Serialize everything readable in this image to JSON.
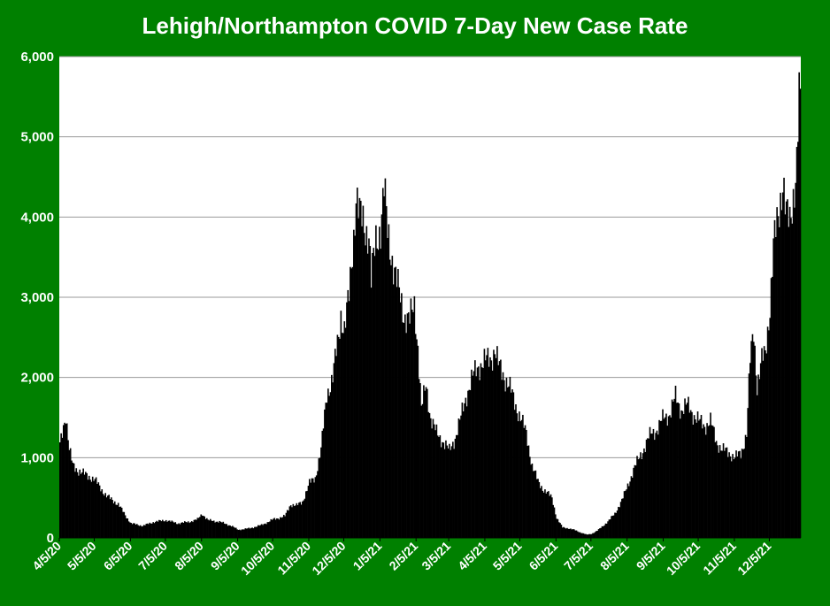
{
  "chart_data": {
    "type": "bar",
    "title": "Lehigh/Northampton COVID 7-Day New Case Rate",
    "xlabel": "",
    "ylabel": "",
    "ylim": [
      0,
      6000
    ],
    "y_ticks": [
      0,
      1000,
      2000,
      3000,
      4000,
      5000,
      6000
    ],
    "y_tick_labels": [
      "0",
      "1,000",
      "2,000",
      "3,000",
      "4,000",
      "5,000",
      "6,000"
    ],
    "x_tick_labels": [
      "4/5/20",
      "5/5/20",
      "6/5/20",
      "7/5/20",
      "8/5/20",
      "9/5/20",
      "10/5/20",
      "11/5/20",
      "12/5/20",
      "1/5/21",
      "2/5/21",
      "3/5/21",
      "4/5/21",
      "5/5/21",
      "6/5/21",
      "7/5/21",
      "8/5/21",
      "9/5/21",
      "10/5/21",
      "11/5/21",
      "12/5/21"
    ],
    "x_range": [
      "2020-04-05",
      "2021-12-31"
    ],
    "grid": true,
    "bar_color": "#000000",
    "plot_background": "#ffffff",
    "frame_background": "#008000",
    "series": [
      {
        "points": [
          [
            "2020-04-05",
            1150
          ],
          [
            "2020-04-08",
            1400
          ],
          [
            "2020-04-10",
            1550
          ],
          [
            "2020-04-13",
            1100
          ],
          [
            "2020-04-16",
            900
          ],
          [
            "2020-04-20",
            850
          ],
          [
            "2020-04-25",
            800
          ],
          [
            "2020-05-01",
            760
          ],
          [
            "2020-05-05",
            720
          ],
          [
            "2020-05-10",
            620
          ],
          [
            "2020-05-15",
            520
          ],
          [
            "2020-05-20",
            470
          ],
          [
            "2020-05-25",
            420
          ],
          [
            "2020-06-01",
            260
          ],
          [
            "2020-06-05",
            180
          ],
          [
            "2020-06-15",
            150
          ],
          [
            "2020-06-25",
            200
          ],
          [
            "2020-07-05",
            220
          ],
          [
            "2020-07-15",
            180
          ],
          [
            "2020-07-25",
            200
          ],
          [
            "2020-08-01",
            230
          ],
          [
            "2020-08-05",
            300
          ],
          [
            "2020-08-10",
            220
          ],
          [
            "2020-08-20",
            200
          ],
          [
            "2020-08-30",
            150
          ],
          [
            "2020-09-05",
            100
          ],
          [
            "2020-09-15",
            120
          ],
          [
            "2020-09-25",
            160
          ],
          [
            "2020-10-05",
            230
          ],
          [
            "2020-10-15",
            270
          ],
          [
            "2020-10-20",
            420
          ],
          [
            "2020-10-25",
            400
          ],
          [
            "2020-10-30",
            450
          ],
          [
            "2020-11-05",
            680
          ],
          [
            "2020-11-10",
            750
          ],
          [
            "2020-11-15",
            1100
          ],
          [
            "2020-11-20",
            1800
          ],
          [
            "2020-11-25",
            2000
          ],
          [
            "2020-11-30",
            2500
          ],
          [
            "2020-12-02",
            2800
          ],
          [
            "2020-12-05",
            2600
          ],
          [
            "2020-12-09",
            3000
          ],
          [
            "2020-12-13",
            3800
          ],
          [
            "2020-12-15",
            4300
          ],
          [
            "2020-12-18",
            4000
          ],
          [
            "2020-12-22",
            3900
          ],
          [
            "2020-12-26",
            3800
          ],
          [
            "2020-12-28",
            3200
          ],
          [
            "2021-01-01",
            3700
          ],
          [
            "2021-01-05",
            3900
          ],
          [
            "2021-01-08",
            4350
          ],
          [
            "2021-01-11",
            3800
          ],
          [
            "2021-01-15",
            3500
          ],
          [
            "2021-01-20",
            3100
          ],
          [
            "2021-01-25",
            2800
          ],
          [
            "2021-01-30",
            2700
          ],
          [
            "2021-02-03",
            2900
          ],
          [
            "2021-02-06",
            2400
          ],
          [
            "2021-02-09",
            1600
          ],
          [
            "2021-02-13",
            1900
          ],
          [
            "2021-02-17",
            1500
          ],
          [
            "2021-02-22",
            1300
          ],
          [
            "2021-02-28",
            1200
          ],
          [
            "2021-03-05",
            1080
          ],
          [
            "2021-03-10",
            1250
          ],
          [
            "2021-03-15",
            1500
          ],
          [
            "2021-03-20",
            1800
          ],
          [
            "2021-03-25",
            2000
          ],
          [
            "2021-03-30",
            2150
          ],
          [
            "2021-04-05",
            2200
          ],
          [
            "2021-04-10",
            2250
          ],
          [
            "2021-04-13",
            2350
          ],
          [
            "2021-04-16",
            2150
          ],
          [
            "2021-04-20",
            2050
          ],
          [
            "2021-04-25",
            1900
          ],
          [
            "2021-05-01",
            1650
          ],
          [
            "2021-05-05",
            1500
          ],
          [
            "2021-05-10",
            1300
          ],
          [
            "2021-05-15",
            900
          ],
          [
            "2021-05-20",
            700
          ],
          [
            "2021-05-25",
            600
          ],
          [
            "2021-06-01",
            500
          ],
          [
            "2021-06-05",
            250
          ],
          [
            "2021-06-10",
            130
          ],
          [
            "2021-06-15",
            120
          ],
          [
            "2021-06-20",
            100
          ],
          [
            "2021-06-25",
            70
          ],
          [
            "2021-07-01",
            40
          ],
          [
            "2021-07-05",
            50
          ],
          [
            "2021-07-10",
            90
          ],
          [
            "2021-07-15",
            150
          ],
          [
            "2021-07-20",
            220
          ],
          [
            "2021-07-25",
            300
          ],
          [
            "2021-08-01",
            500
          ],
          [
            "2021-08-05",
            650
          ],
          [
            "2021-08-10",
            850
          ],
          [
            "2021-08-15",
            1000
          ],
          [
            "2021-08-20",
            1150
          ],
          [
            "2021-08-25",
            1300
          ],
          [
            "2021-08-30",
            1350
          ],
          [
            "2021-09-05",
            1500
          ],
          [
            "2021-09-10",
            1550
          ],
          [
            "2021-09-15",
            1750
          ],
          [
            "2021-09-20",
            1600
          ],
          [
            "2021-09-25",
            1650
          ],
          [
            "2021-09-30",
            1550
          ],
          [
            "2021-10-05",
            1450
          ],
          [
            "2021-10-10",
            1400
          ],
          [
            "2021-10-15",
            1450
          ],
          [
            "2021-10-20",
            1200
          ],
          [
            "2021-10-25",
            1100
          ],
          [
            "2021-11-01",
            1050
          ],
          [
            "2021-11-05",
            1000
          ],
          [
            "2021-11-10",
            1050
          ],
          [
            "2021-11-15",
            1300
          ],
          [
            "2021-11-18",
            2200
          ],
          [
            "2021-11-21",
            2600
          ],
          [
            "2021-11-24",
            1900
          ],
          [
            "2021-11-28",
            2200
          ],
          [
            "2021-12-01",
            2300
          ],
          [
            "2021-12-05",
            2900
          ],
          [
            "2021-12-08",
            3600
          ],
          [
            "2021-12-12",
            4000
          ],
          [
            "2021-12-16",
            4500
          ],
          [
            "2021-12-19",
            4000
          ],
          [
            "2021-12-22",
            3900
          ],
          [
            "2021-12-25",
            4300
          ],
          [
            "2021-12-28",
            4700
          ],
          [
            "2021-12-30",
            5480
          ],
          [
            "2021-12-31",
            5300
          ]
        ]
      }
    ]
  }
}
